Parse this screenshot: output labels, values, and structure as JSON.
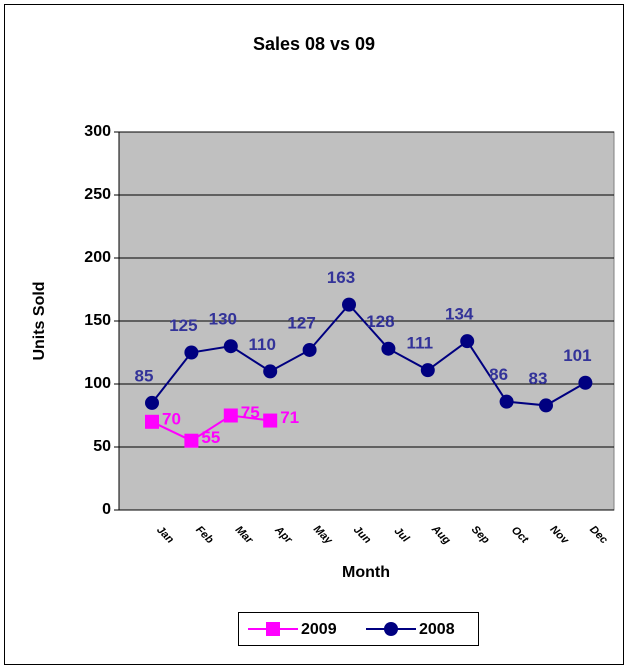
{
  "chart_data": {
    "type": "line",
    "title": "Sales 08 vs 09",
    "x_label": "Month",
    "y_label": "Units Sold",
    "categories": [
      "Jan",
      "Feb",
      "Mar",
      "Apr",
      "May",
      "Jun",
      "Jul",
      "Aug",
      "Sep",
      "Oct",
      "Nov",
      "Dec"
    ],
    "series": [
      {
        "name": "2009",
        "color": "#ff00ff",
        "marker": "square",
        "values": [
          70,
          55,
          75,
          71,
          null,
          null,
          null,
          null,
          null,
          null,
          null,
          null
        ]
      },
      {
        "name": "2008",
        "color": "#000080",
        "marker": "circle",
        "values": [
          85,
          125,
          130,
          110,
          127,
          163,
          128,
          111,
          134,
          86,
          83,
          101
        ]
      }
    ],
    "ylim": [
      0,
      300
    ],
    "yticks": [
      0,
      50,
      100,
      150,
      200,
      250,
      300
    ],
    "grid": true,
    "legend": "bottom"
  }
}
